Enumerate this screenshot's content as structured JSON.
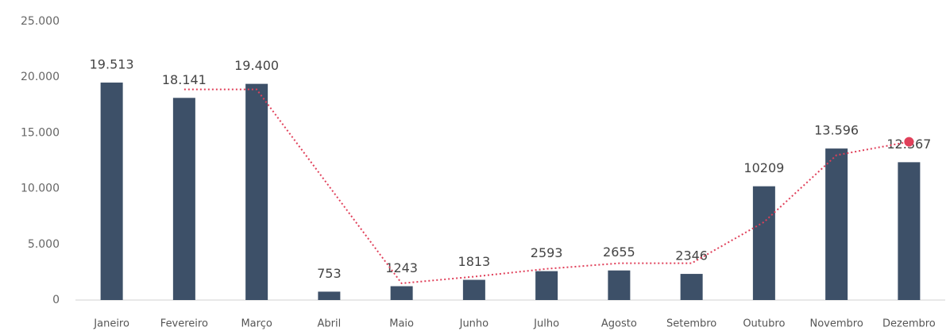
{
  "chart_data": {
    "type": "bar",
    "categories": [
      "Janeiro",
      "Fevereiro",
      "Março",
      "Abril",
      "Maio",
      "Junho",
      "Julho",
      "Agosto",
      "Setembro",
      "Outubro",
      "Novembro",
      "Dezembro"
    ],
    "series": [
      {
        "color": "#3d5068",
        "values": [
          19513,
          18141,
          19400,
          753,
          1243,
          1813,
          2593,
          2655,
          2346,
          10209,
          13596,
          12367
        ],
        "value_labels": [
          "19.513",
          "18.141",
          "19.400",
          "753",
          "1243",
          "1813",
          "2593",
          "2655",
          "2346",
          "10209",
          "13.596",
          "12.367"
        ]
      },
      {
        "type": "line",
        "style": "dotted",
        "color": "#e0405a",
        "end_marker": true,
        "values": [
          null,
          18900,
          18900,
          10200,
          1500,
          2100,
          2800,
          3300,
          3300,
          7000,
          13000,
          14200
        ]
      }
    ],
    "ylim": [
      0,
      25000
    ],
    "yticks": [
      0,
      {
        "value": 5000,
        "label": "5.000"
      },
      {
        "value": 10000,
        "label": "10.000"
      },
      {
        "value": 15000,
        "label": "15.000"
      },
      {
        "value": 20000,
        "label": "20.000"
      },
      {
        "value": 25000,
        "label": "25.000"
      }
    ]
  }
}
